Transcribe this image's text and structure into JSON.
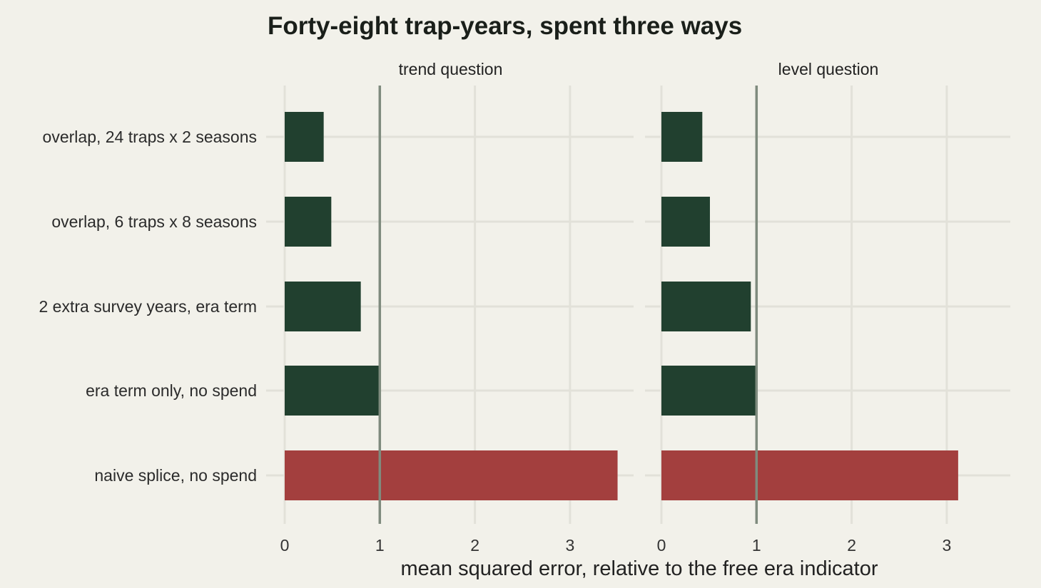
{
  "chart_data": {
    "type": "bar",
    "orientation": "horizontal",
    "title": "Forty-eight trap-years, spent three ways",
    "xlabel": "mean squared error, relative to the free era indicator",
    "ylabel": "",
    "categories": [
      "overlap, 24 traps x 2 seasons",
      "overlap, 6 traps x 8 seasons",
      "2 extra survey years, era term",
      "era term only, no spend",
      "naive splice, no spend"
    ],
    "facets": [
      {
        "name": "trend question",
        "values": [
          0.41,
          0.49,
          0.8,
          1.0,
          3.5
        ]
      },
      {
        "name": "level question",
        "values": [
          0.43,
          0.51,
          0.94,
          1.0,
          3.12
        ]
      }
    ],
    "xlim": [
      0,
      3.65
    ],
    "xticks": [
      "0",
      "1",
      "2",
      "3"
    ],
    "reference_line": 1,
    "colors": {
      "bar": "#21402f",
      "highlight_bar": "#a33f3e",
      "reference_line": "#7f8b7e",
      "grid": "#e2e1d9",
      "background": "#f2f1ea"
    },
    "highlight_category": "naive splice, no spend",
    "grid": true,
    "legend": "none"
  }
}
